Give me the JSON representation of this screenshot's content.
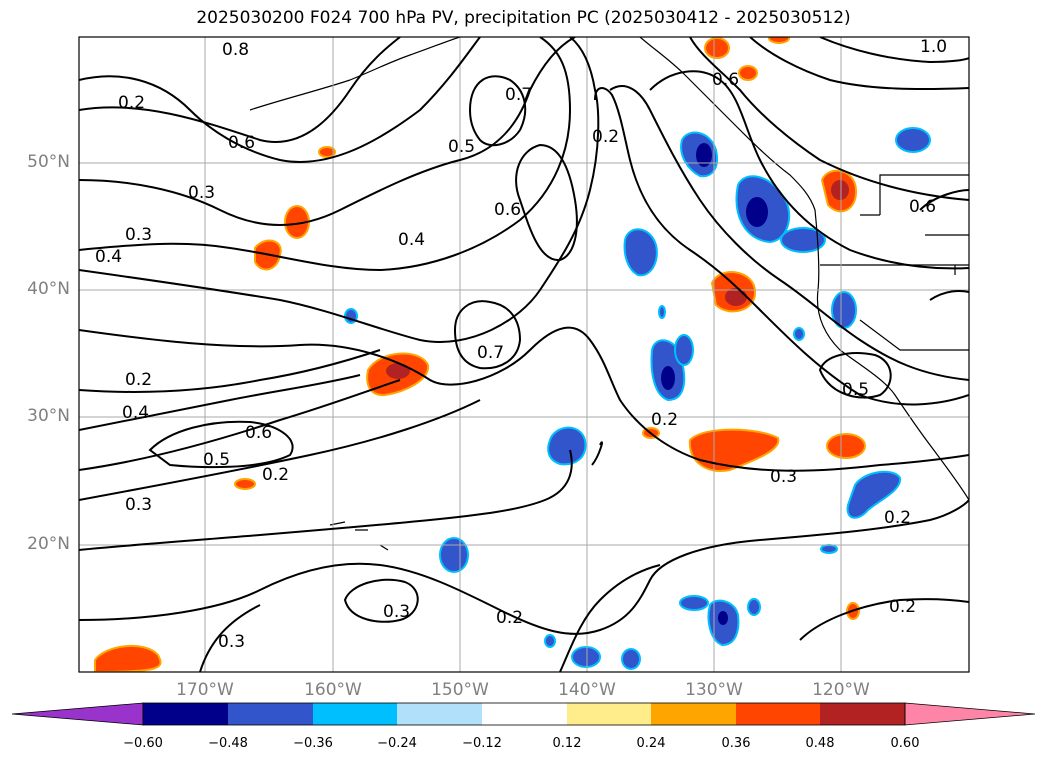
{
  "title": "2025030200 F024 700 hPa PV, precipitation PC (2025030412 - 2025030512)",
  "lat_ticks": [
    "50°N",
    "40°N",
    "30°N",
    "20°N"
  ],
  "lon_ticks": [
    "170°W",
    "160°W",
    "150°W",
    "140°W",
    "130°W",
    "120°W"
  ],
  "contour_labels": [
    "0.8",
    "0.2",
    "0.6",
    "0.3",
    "0.4",
    "0.5",
    "0.7",
    "1.0",
    "0.2",
    "0.6",
    "0.4",
    "0.3",
    "0.2",
    "0.4",
    "0.5",
    "0.3",
    "0.2",
    "0.3",
    "0.3",
    "0.2",
    "0.3",
    "0.2",
    "0.5",
    "0.6",
    "0.6",
    "0.2",
    "0.2",
    "0.6",
    "0.7"
  ],
  "colorbar": {
    "ticks": [
      "−0.60",
      "−0.48",
      "−0.36",
      "−0.24",
      "−0.12",
      "0.12",
      "0.24",
      "0.36",
      "0.48",
      "0.60"
    ],
    "colors": [
      "#9933cc",
      "#00008b",
      "#3355cc",
      "#00bfff",
      "#b0e0fa",
      "#ffffff",
      "#ffec8b",
      "#ffa500",
      "#ff4500",
      "#b22222",
      "#ff85a8"
    ]
  },
  "colors": {
    "frame": "#000000",
    "grid": "#aaaaaa",
    "tick_text": "#808080"
  }
}
